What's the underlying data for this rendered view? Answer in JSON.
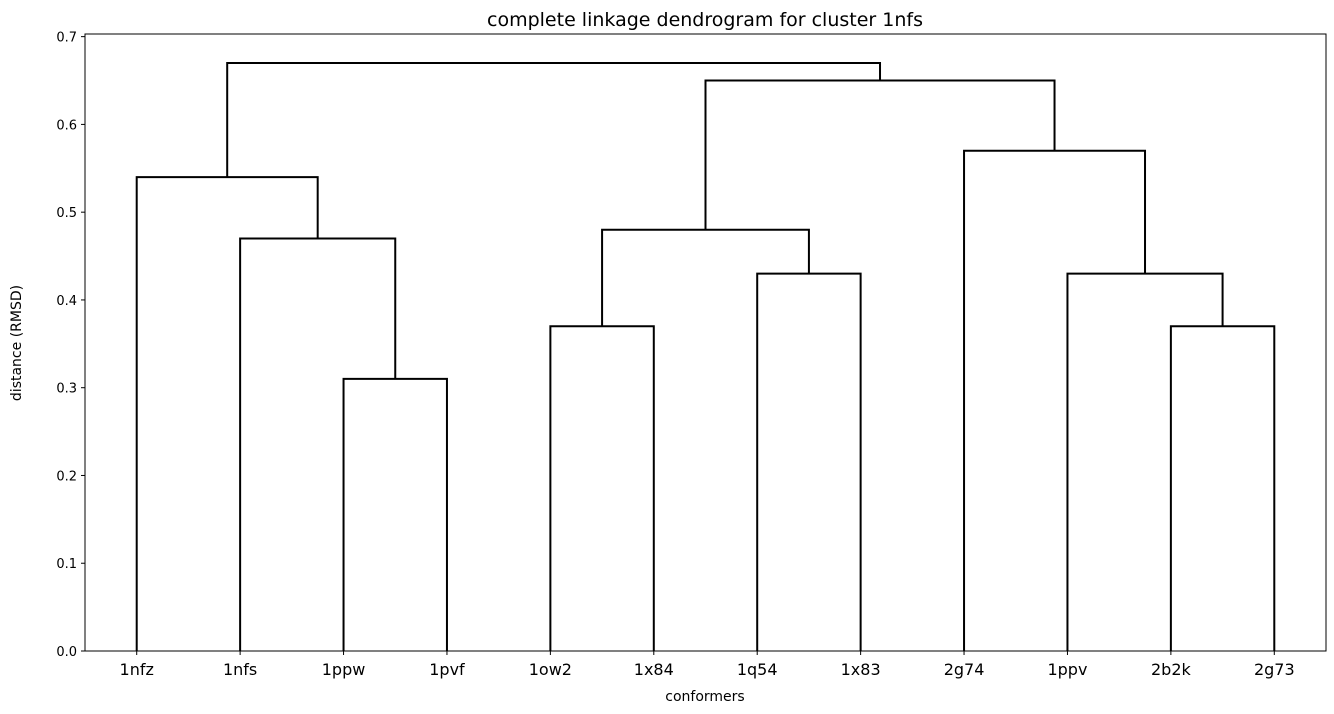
{
  "chart_data": {
    "type": "dendrogram",
    "title": "complete linkage dendrogram for cluster 1nfs",
    "xlabel": "conformers",
    "ylabel": "distance (RMSD)",
    "ylim": [
      0,
      0.7
    ],
    "yticks": [
      "0.0",
      "0.1",
      "0.2",
      "0.3",
      "0.4",
      "0.5",
      "0.6",
      "0.7"
    ],
    "leaves": [
      "1nfz",
      "1nfs",
      "1ppw",
      "1pvf",
      "1ow2",
      "1x84",
      "1q54",
      "1x83",
      "2g74",
      "1ppv",
      "2b2k",
      "2g73"
    ],
    "merges": [
      {
        "left": "1ppw",
        "right": "1pvf",
        "distance": 0.31
      },
      {
        "left": "1ow2",
        "right": "1x84",
        "distance": 0.37
      },
      {
        "left": "2b2k",
        "right": "2g73",
        "distance": 0.37
      },
      {
        "left": "1q54",
        "right": "1x83",
        "distance": 0.43
      },
      {
        "left": "1ppv",
        "right": "2b2k+2g73",
        "distance": 0.43
      },
      {
        "left": "1nfs",
        "right": "1ppw+1pvf",
        "distance": 0.47
      },
      {
        "left": "1ow2+1x84",
        "right": "1q54+1x83",
        "distance": 0.48
      },
      {
        "left": "1nfz",
        "right": "1nfs+1ppw+1pvf",
        "distance": 0.54
      },
      {
        "left": "2g74",
        "right": "1ppv+2b2k+2g73",
        "distance": 0.57
      },
      {
        "left": "1ow2+1x84+1q54+1x83",
        "right": "2g74+1ppv+2b2k+2g73",
        "distance": 0.65
      },
      {
        "left": "1nfz+1nfs+1ppw+1pvf",
        "right": "1ow2+1x84+1q54+1x83+2g74+1ppv+2b2k+2g73",
        "distance": 0.67
      }
    ],
    "grid": false,
    "color": "#000000"
  }
}
